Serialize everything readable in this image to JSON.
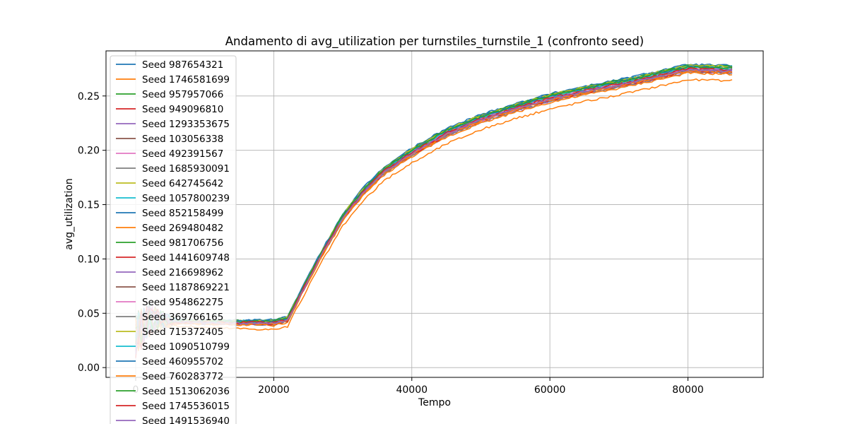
{
  "chart_data": {
    "type": "line",
    "title": "Andamento di avg_utilization per turnstiles_turnstile_1 (confronto seed)",
    "xlabel": "Tempo",
    "ylabel": "avg_utilization",
    "xlim": [
      -4300,
      90900
    ],
    "ylim": [
      -0.009,
      0.2915
    ],
    "xticks": [
      0,
      20000,
      40000,
      60000,
      80000
    ],
    "yticks": [
      0.0,
      0.05,
      0.1,
      0.15,
      0.2,
      0.25
    ],
    "ytick_labels": [
      "0.00",
      "0.05",
      "0.10",
      "0.15",
      "0.20",
      "0.25"
    ],
    "grid": true,
    "legend_position": "upper-left",
    "base_curve": [
      [
        0,
        0.03
      ],
      [
        2000,
        0.045
      ],
      [
        5000,
        0.043
      ],
      [
        10000,
        0.042
      ],
      [
        15000,
        0.042
      ],
      [
        20000,
        0.042
      ],
      [
        22000,
        0.045
      ],
      [
        24000,
        0.07
      ],
      [
        27000,
        0.106
      ],
      [
        30000,
        0.139
      ],
      [
        33000,
        0.163
      ],
      [
        36000,
        0.182
      ],
      [
        40000,
        0.199
      ],
      [
        45000,
        0.217
      ],
      [
        50000,
        0.23
      ],
      [
        55000,
        0.24
      ],
      [
        60000,
        0.249
      ],
      [
        65000,
        0.256
      ],
      [
        70000,
        0.262
      ],
      [
        75000,
        0.269
      ],
      [
        80000,
        0.276
      ],
      [
        86400,
        0.275
      ]
    ],
    "series": [
      {
        "name": "Seed 987654321",
        "color": "#1f77b4",
        "offset": 0.002
      },
      {
        "name": "Seed 1746581699",
        "color": "#ff7f0e",
        "offset": -0.011
      },
      {
        "name": "Seed 957957066",
        "color": "#2ca02c",
        "offset": 0.0
      },
      {
        "name": "Seed 949096810",
        "color": "#d62728",
        "offset": -0.002
      },
      {
        "name": "Seed 1293353675",
        "color": "#9467bd",
        "offset": -0.004
      },
      {
        "name": "Seed 103056338",
        "color": "#8c564b",
        "offset": 0.001
      },
      {
        "name": "Seed 492391567",
        "color": "#e377c2",
        "offset": -0.003
      },
      {
        "name": "Seed 1685930091",
        "color": "#7f7f7f",
        "offset": -0.004
      },
      {
        "name": "Seed 642745642",
        "color": "#bcbd22",
        "offset": 0.001
      },
      {
        "name": "Seed 1057800239",
        "color": "#17becf",
        "offset": 0.002
      },
      {
        "name": "Seed 852158499",
        "color": "#1f77b4",
        "offset": 0.003
      },
      {
        "name": "Seed 269480482",
        "color": "#ff7f0e",
        "offset": -0.005
      },
      {
        "name": "Seed 981706756",
        "color": "#2ca02c",
        "offset": 0.002
      },
      {
        "name": "Seed 1441609748",
        "color": "#d62728",
        "offset": -0.003
      },
      {
        "name": "Seed 216698962",
        "color": "#9467bd",
        "offset": -0.002
      },
      {
        "name": "Seed 1187869221",
        "color": "#8c564b",
        "offset": 0.0
      },
      {
        "name": "Seed 954862275",
        "color": "#e377c2",
        "offset": -0.001
      },
      {
        "name": "Seed 369766165",
        "color": "#7f7f7f",
        "offset": -0.002
      },
      {
        "name": "Seed 715372405",
        "color": "#bcbd22",
        "offset": 0.002
      },
      {
        "name": "Seed 1090510799",
        "color": "#17becf",
        "offset": 0.0
      },
      {
        "name": "Seed 460955702",
        "color": "#1f77b4",
        "offset": 0.001
      },
      {
        "name": "Seed 760283772",
        "color": "#ff7f0e",
        "offset": -0.003
      },
      {
        "name": "Seed 1513062036",
        "color": "#2ca02c",
        "offset": 0.001
      },
      {
        "name": "Seed 1745536015",
        "color": "#d62728",
        "offset": -0.001
      },
      {
        "name": "Seed 1491536940",
        "color": "#9467bd",
        "offset": -0.002
      }
    ]
  }
}
